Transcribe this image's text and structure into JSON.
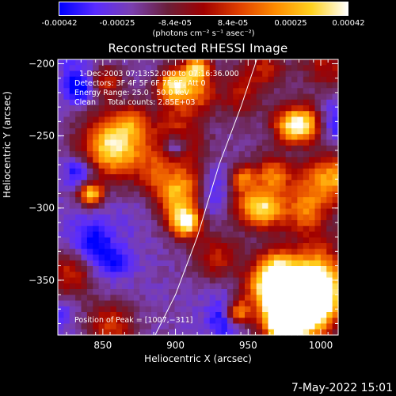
{
  "colorbar": {
    "tick_labels": [
      "-0.00042",
      "-0.00025",
      "-8.4e-05",
      "8.4e-05",
      "0.00025",
      "0.00042"
    ],
    "units": "(photons cm⁻² s⁻¹ asec⁻²)",
    "range": [
      -0.00042,
      0.00042
    ],
    "colors": [
      "#0000ff",
      "#5a2cff",
      "#7a3fb0",
      "#6a1f3a",
      "#a00000",
      "#e04000",
      "#ff8c00",
      "#ffd21f",
      "#ffffff"
    ]
  },
  "chart_data": {
    "type": "heatmap",
    "title": "Reconstructed RHESSI Image",
    "xlabel": "Heliocentric X (arcsec)",
    "ylabel": "Heliocentric Y (arcsec)",
    "xlim": [
      819,
      1012
    ],
    "ylim": [
      -388,
      -197
    ],
    "x_ticks": [
      850,
      900,
      950,
      1000
    ],
    "y_ticks": [
      -200,
      -250,
      -300,
      -350
    ],
    "x_tick_labels": [
      "850",
      "900",
      "950",
      "1000"
    ],
    "y_tick_labels": [
      "−200",
      "−250",
      "−300",
      "−350"
    ],
    "limb_curve": {
      "x": [
        885,
        900,
        915,
        930,
        945,
        960
      ],
      "y": [
        -390,
        -360,
        -320,
        -270,
        -230,
        -185
      ]
    },
    "annotations": [
      "1-Dec-2003 07:13:52.000 to 07:16:36.000",
      "Detectors: 3F 4F 5F 6F 7F 8F, Att 0",
      "Energy Range: 25.0 - 50.0 keV",
      "Clean     Total counts: 2.85E+03"
    ],
    "peak_label": "Position of Peak = [1007,−311]",
    "peak": [
      1007,
      -311
    ]
  },
  "footer": {
    "date": "7-May-2022 15:01"
  }
}
